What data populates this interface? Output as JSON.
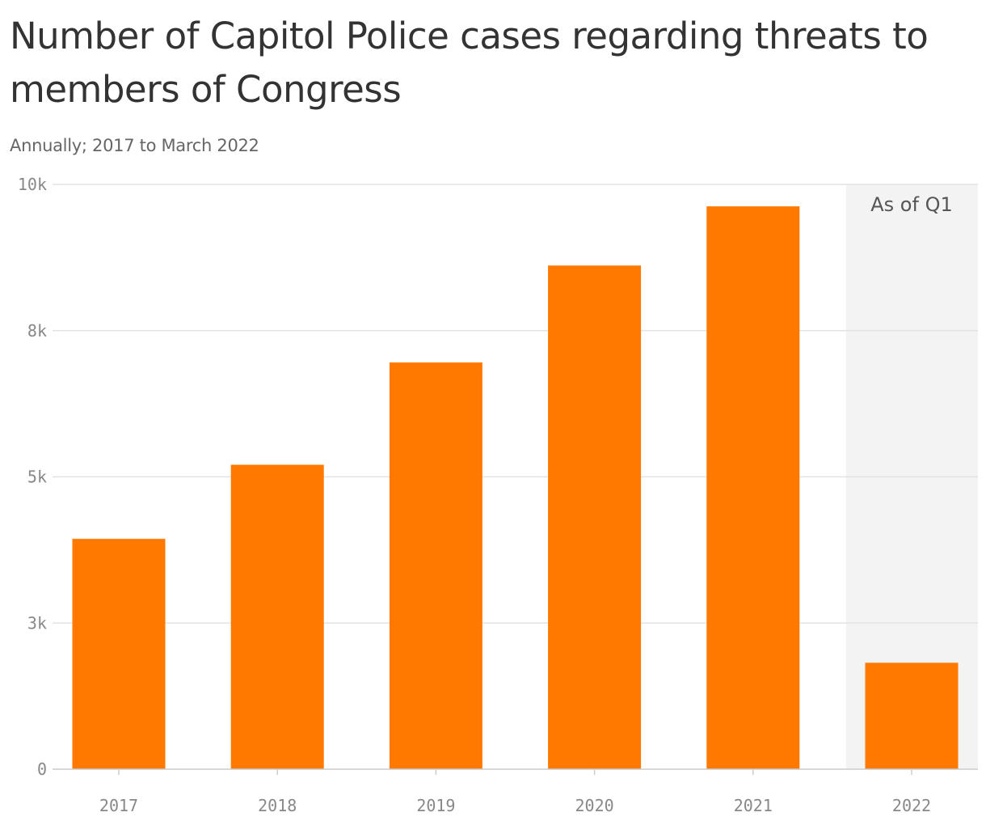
{
  "chart_data": {
    "type": "bar",
    "title": "Number of Capitol Police cases regarding threats to members of Congress",
    "subtitle": "Annually; 2017 to March 2022",
    "categories": [
      "2017",
      "2018",
      "2019",
      "2020",
      "2021",
      "2022"
    ],
    "values": [
      3939,
      5206,
      6955,
      8613,
      9625,
      1820
    ],
    "ylim": [
      0,
      10000
    ],
    "y_ticks": [
      {
        "value": 0,
        "label": "0"
      },
      {
        "value": 2500,
        "label": "3k"
      },
      {
        "value": 5000,
        "label": "5k"
      },
      {
        "value": 7500,
        "label": "8k"
      },
      {
        "value": 10000,
        "label": "10k"
      }
    ],
    "grid": true,
    "highlight": {
      "category": "2022",
      "label": "As of Q1"
    },
    "colors": {
      "bar": "#ff7900",
      "highlight_bg": "#f3f3f3",
      "grid": "#e3e3e3",
      "axis": "#cccccc"
    }
  }
}
